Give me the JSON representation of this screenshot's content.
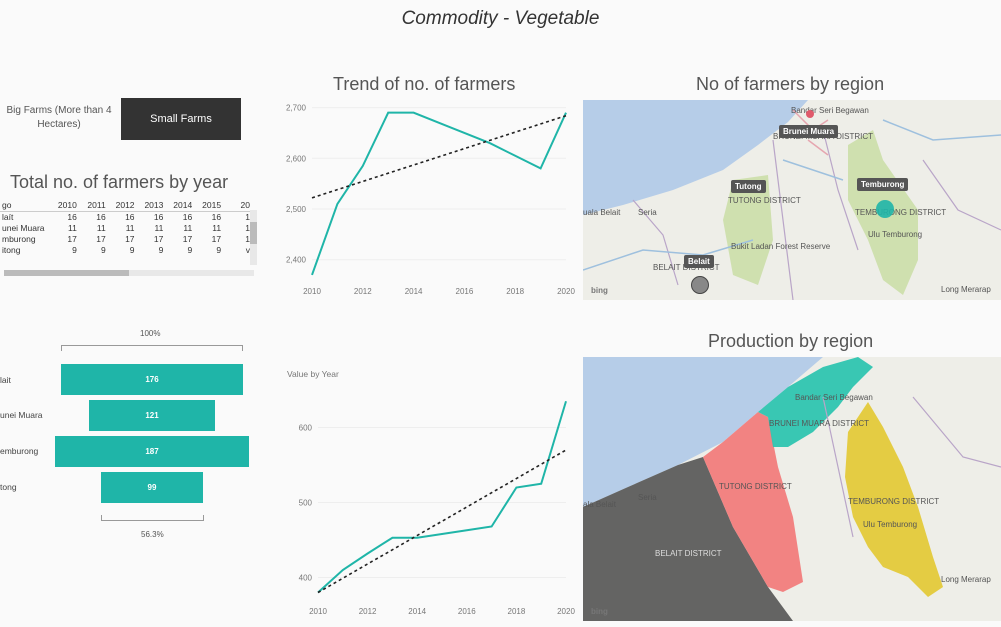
{
  "page_title": "Commodity - Vegetable",
  "slicer": {
    "big": "Big Farms (More than 4 Hectares)",
    "small": "Small Farms"
  },
  "matrix": {
    "title": "Total no. of farmers by year",
    "headers": [
      "go",
      "2010",
      "2011",
      "2012",
      "2013",
      "2014",
      "2015",
      "20"
    ],
    "rows": [
      [
        "laít",
        "16",
        "16",
        "16",
        "16",
        "16",
        "16",
        "1"
      ],
      [
        "unei Muara",
        "11",
        "11",
        "11",
        "11",
        "11",
        "11",
        "1"
      ],
      [
        "mburong",
        "17",
        "17",
        "17",
        "17",
        "17",
        "17",
        "1"
      ],
      [
        "itong",
        "9",
        "9",
        "9",
        "9",
        "9",
        "9",
        "v"
      ]
    ]
  },
  "funnel": {
    "top_label": "100%",
    "bottom_label": "56.3%",
    "categories": [
      "lait",
      "unei Muara",
      "emburong",
      "tong"
    ],
    "values": [
      176,
      121,
      187,
      99
    ],
    "color": "#1fb5a8"
  },
  "trend_title": "Trend of no. of farmers",
  "map1": {
    "title": "No of farmers by region",
    "pins": [
      "Brunei Muara",
      "Tutong",
      "Temburong",
      "Belait"
    ],
    "labels": [
      "Bandar Seri Begawan",
      "BRUNEI MUARA DISTRICT",
      "TUTONG DISTRICT",
      "TEMBURONG DISTRICT",
      "Ulu Temburong",
      "BELAIT DISTRICT",
      "Bukit Ladan Forest Reserve",
      "Seria",
      "uala Belait",
      "Long Merarap"
    ],
    "bing": "bing"
  },
  "map2": {
    "title": "Production by region",
    "labels": [
      "Bandar Seri Begawan",
      "BRUNEI MUARA DISTRICT",
      "TUTONG DISTRICT",
      "TEMBURONG DISTRICT",
      "Ulu Temburong",
      "BELAIT DISTRICT",
      "Seria",
      "ala Belait",
      "Long Merarap"
    ],
    "bing": "bing",
    "colors": {
      "belait": "#5c5c5c",
      "tutong": "#f17c7c",
      "brunei_muara": "#2ec4b0",
      "temburong": "#e3c93a"
    }
  },
  "chart_data": [
    {
      "type": "line",
      "title": "Trend of no. of farmers",
      "x": [
        2010,
        2011,
        2012,
        2013,
        2014,
        2015,
        2016,
        2017,
        2018,
        2019,
        2020
      ],
      "series": [
        {
          "values": [
            2370,
            2510,
            2585,
            2690,
            2690,
            2670,
            2650,
            2630,
            2605,
            2580,
            2690
          ]
        }
      ],
      "trendline": [
        [
          2010,
          2522
        ],
        [
          2020,
          2684
        ]
      ],
      "xticks": [
        2010,
        2012,
        2014,
        2016,
        2018,
        2020
      ],
      "yticks": [
        2400,
        2500,
        2600,
        2700
      ],
      "ytick_labels": [
        "2,400",
        "2,500",
        "2,600",
        "2,700"
      ],
      "xlim": [
        2010,
        2020
      ],
      "ylim": [
        2360,
        2715
      ],
      "color": "#1fb5a8"
    },
    {
      "type": "line",
      "title": "",
      "ylabel": "Value by Year",
      "x": [
        2010,
        2011,
        2012,
        2013,
        2014,
        2015,
        2016,
        2017,
        2018,
        2019,
        2020
      ],
      "series": [
        {
          "values": [
            380,
            410,
            432,
            453,
            453,
            458,
            463,
            468,
            520,
            525,
            635
          ]
        }
      ],
      "trendline": [
        [
          2010,
          380
        ],
        [
          2020,
          570
        ]
      ],
      "xticks": [
        2010,
        2012,
        2014,
        2016,
        2018,
        2020
      ],
      "yticks": [
        400,
        500,
        600
      ],
      "ytick_labels": [
        "400",
        "500",
        "600"
      ],
      "xlim": [
        2010,
        2020
      ],
      "ylim": [
        370,
        650
      ],
      "color": "#1fb5a8"
    }
  ]
}
